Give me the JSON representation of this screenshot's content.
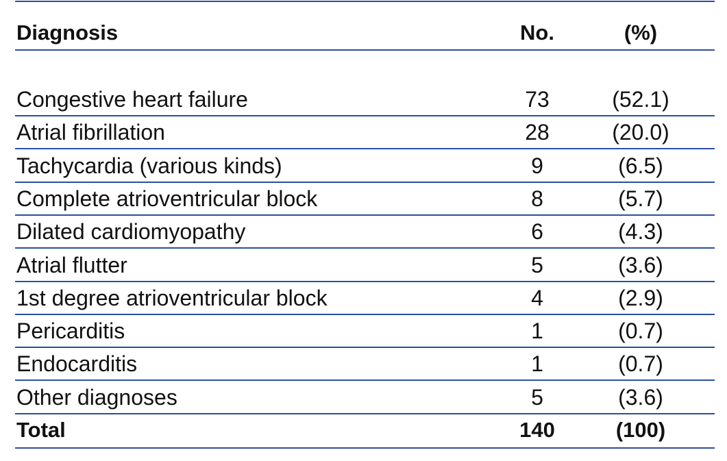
{
  "table": {
    "header": [
      "Diagnosis",
      "No.",
      "(%)"
    ],
    "rows": [
      [
        "Congestive heart failure",
        "73",
        "(52.1)"
      ],
      [
        "Atrial fibrillation",
        "28",
        "(20.0)"
      ],
      [
        "Tachycardia (various kinds)",
        "9",
        "(6.5)"
      ],
      [
        "Complete atrioventricular block",
        "8",
        "(5.7)"
      ],
      [
        "Dilated cardiomyopathy",
        "6",
        "(4.3)"
      ],
      [
        "Atrial flutter",
        "5",
        "(3.6)"
      ],
      [
        "1st degree atrioventricular block",
        "4",
        "(2.9)"
      ],
      [
        "Pericarditis",
        "1",
        "(0.7)"
      ],
      [
        "Endocarditis",
        "1",
        "(0.7)"
      ],
      [
        "Other diagnoses",
        "5",
        "(3.6)"
      ]
    ],
    "total": [
      "Total",
      "140",
      "(100)"
    ]
  }
}
